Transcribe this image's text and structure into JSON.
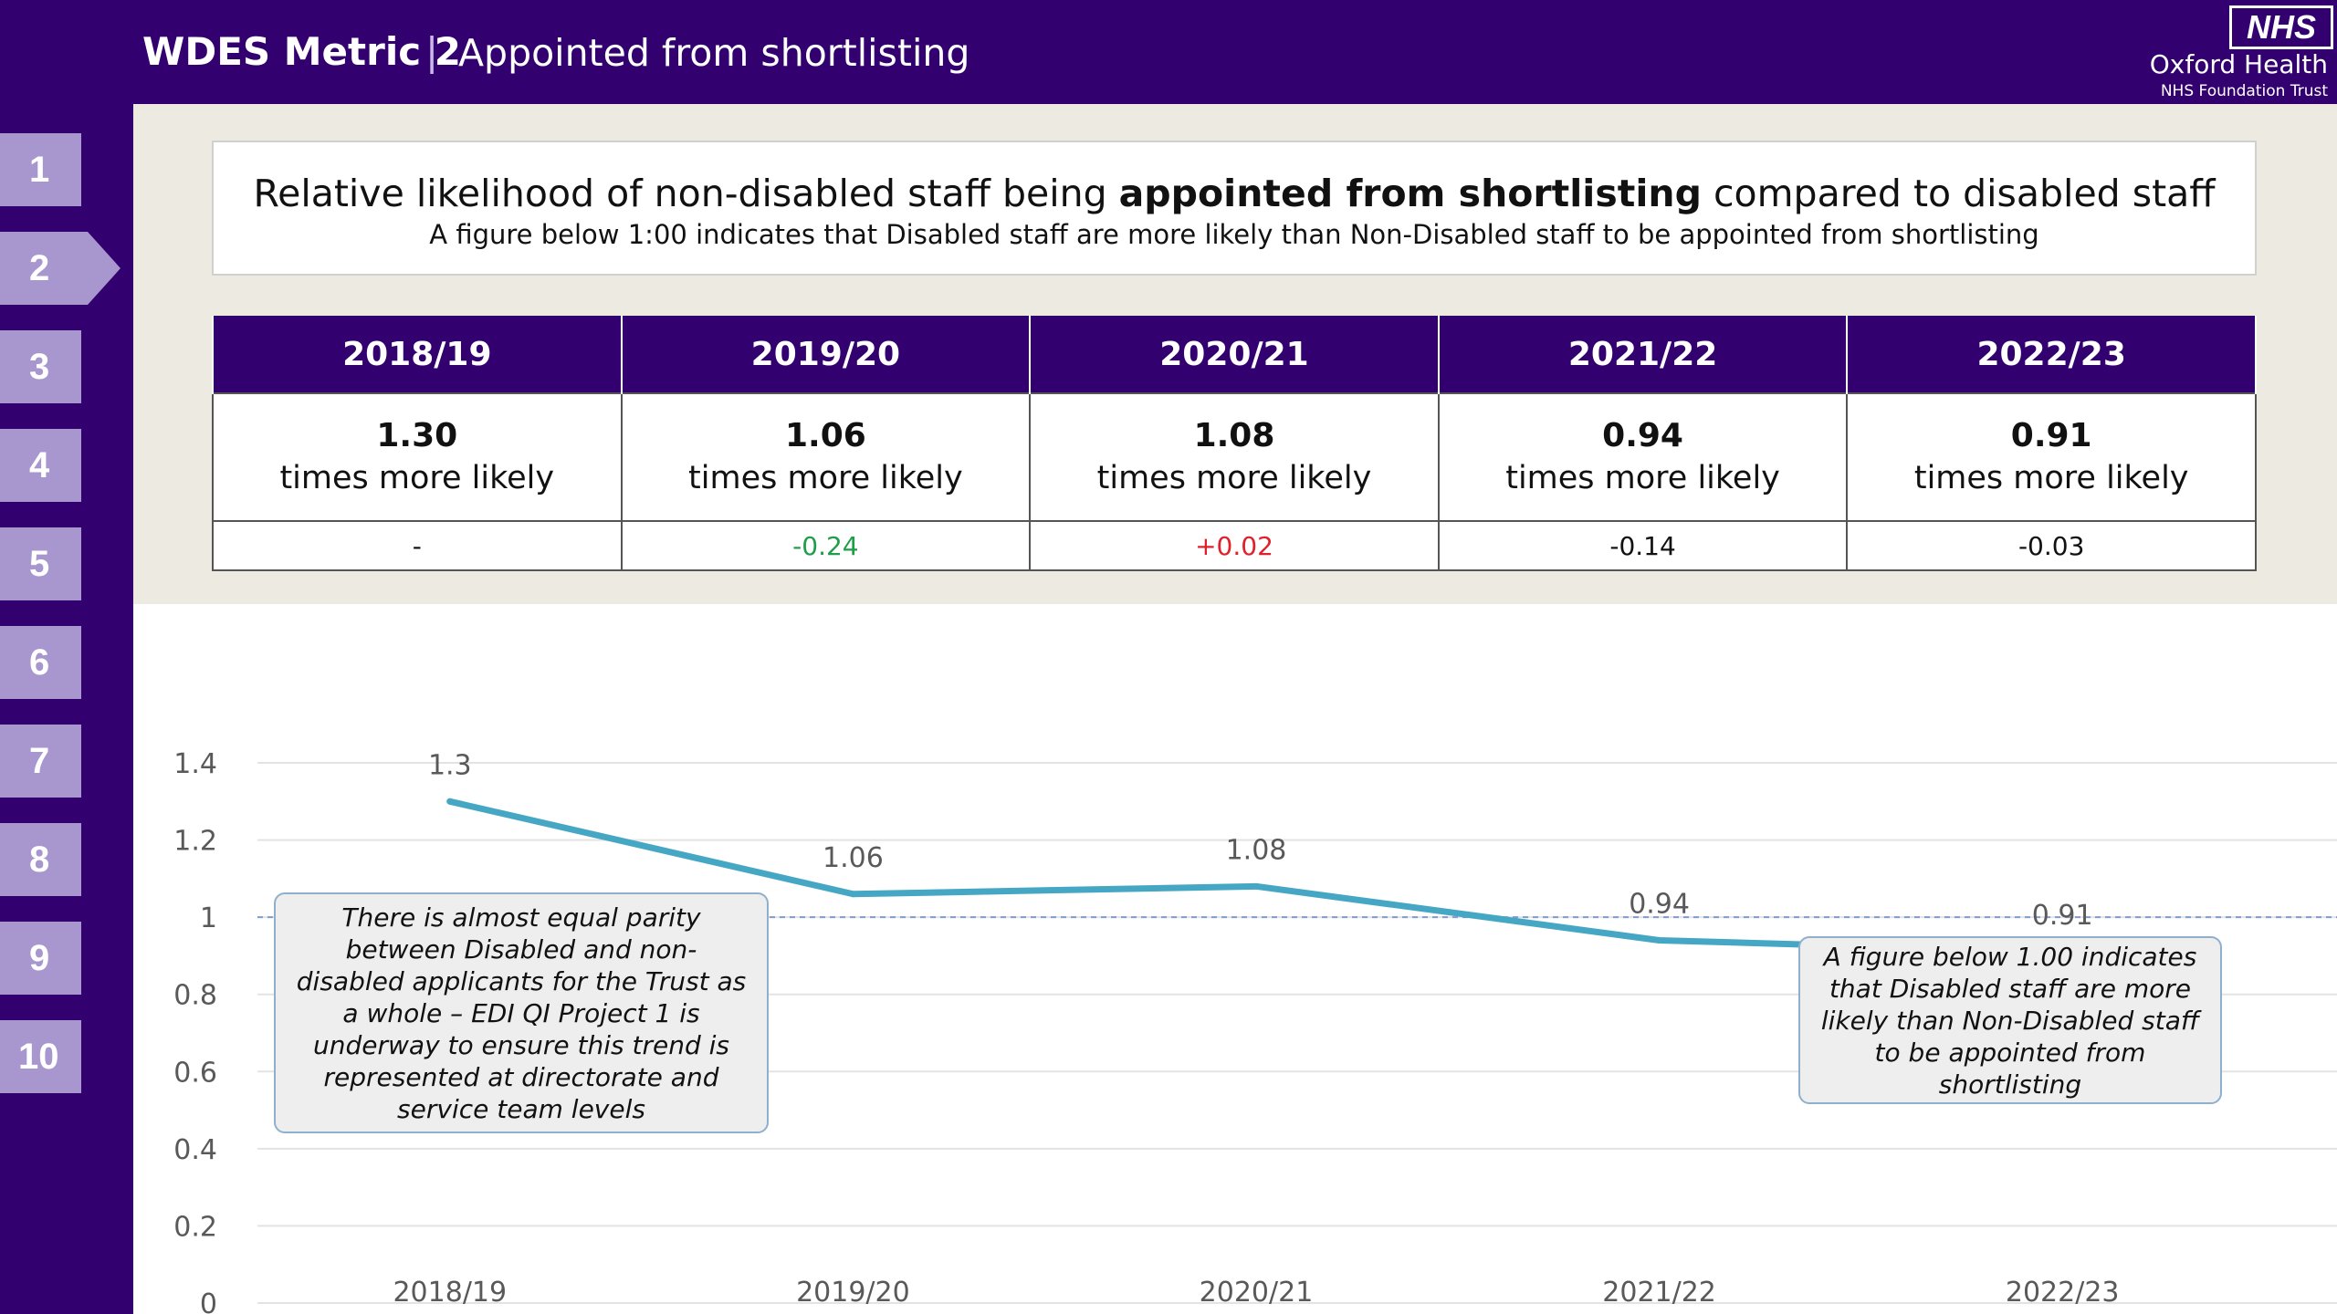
{
  "header": {
    "metric_label": "WDES Metric 2",
    "separator": "|",
    "subtitle": "Appointed from shortlisting",
    "nhs_badge": "NHS",
    "org_name": "Oxford Health",
    "org_sub": "NHS Foundation Trust"
  },
  "nav": [
    "1",
    "2",
    "3",
    "4",
    "5",
    "6",
    "7",
    "8",
    "9",
    "10"
  ],
  "nav_active": "2",
  "title": {
    "prefix": "Relative likelihood of non-disabled staff being ",
    "bold": "appointed from shortlisting",
    "suffix": " compared to disabled staff",
    "note": "A figure below 1:00 indicates that Disabled staff are more likely than Non-Disabled staff to be appointed from shortlisting"
  },
  "table": {
    "unit_label": "times more likely",
    "columns": [
      {
        "year": "2018/19",
        "value": "1.30",
        "change": "-",
        "change_color": "#111111"
      },
      {
        "year": "2019/20",
        "value": "1.06",
        "change": "-0.24",
        "change_color": "#1f9e4a"
      },
      {
        "year": "2020/21",
        "value": "1.08",
        "change": "+0.02",
        "change_color": "#e0202a"
      },
      {
        "year": "2021/22",
        "value": "0.94",
        "change": "-0.14",
        "change_color": "#111111"
      },
      {
        "year": "2022/23",
        "value": "0.91",
        "change": "-0.03",
        "change_color": "#111111"
      }
    ]
  },
  "chart_data": {
    "type": "line",
    "categories": [
      "2018/19",
      "2019/20",
      "2020/21",
      "2021/22",
      "2022/23"
    ],
    "series": [
      {
        "values": [
          1.3,
          1.06,
          1.08,
          0.94,
          0.91
        ],
        "labels": [
          "1.3",
          "1.06",
          "1.08",
          "0.94",
          "0.91"
        ],
        "color": "#46a7c4"
      }
    ],
    "ylim": [
      0,
      1.4
    ],
    "yticks": [
      "0",
      "0.2",
      "0.4",
      "0.6",
      "0.8",
      "1",
      "1.2",
      "1.4"
    ],
    "reference_line": 1,
    "grid": true,
    "legend": "none"
  },
  "notes": {
    "left": "There is almost equal parity between Disabled and non-disabled applicants for the Trust as a whole – EDI QI Project 1 is underway to ensure this trend is represented at directorate and service team levels",
    "right": "A figure below 1.00 indicates that Disabled staff are more likely than Non-Disabled staff to be appointed from shortlisting"
  }
}
